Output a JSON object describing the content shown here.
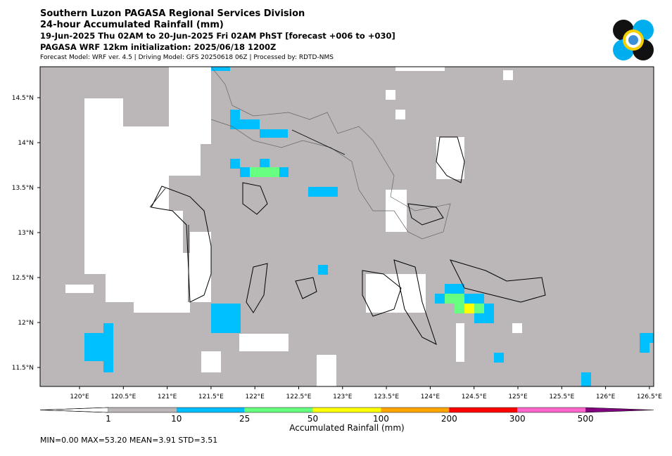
{
  "header": {
    "lines": [
      "Southern Luzon PAGASA Regional Services Division",
      "24-hour Accumulated Rainfall (mm)",
      "19-Jun-2025 Thu 02AM to 20-Jun-2025 Fri 02AM PhST [forecast +006 to +030]",
      "PAGASA WRF 12km initialization: 2025/06/18 1200Z",
      "Forecast Model: WRF ver. 4.5 | Driving Model: GFS 20250618 06Z | Processed by: RDTD-NMS"
    ]
  },
  "map": {
    "xticks": [
      {
        "value": 120,
        "label": "120°E"
      },
      {
        "value": 120.5,
        "label": "120.5°E"
      },
      {
        "value": 121,
        "label": "121°E"
      },
      {
        "value": 121.5,
        "label": "121.5°E"
      },
      {
        "value": 122,
        "label": "122°E"
      },
      {
        "value": 122.5,
        "label": "122.5°E"
      },
      {
        "value": 123,
        "label": "123°E"
      },
      {
        "value": 123.5,
        "label": "123.5°E"
      },
      {
        "value": 124,
        "label": "124°E"
      },
      {
        "value": 124.5,
        "label": "124.5°E"
      },
      {
        "value": 125,
        "label": "125°E"
      },
      {
        "value": 125.5,
        "label": "125.5°E"
      },
      {
        "value": 126,
        "label": "126°E"
      },
      {
        "value": 126.5,
        "label": "126.5°E"
      }
    ],
    "yticks": [
      {
        "value": 14.5,
        "label": "14.5°N"
      },
      {
        "value": 14,
        "label": "14°N"
      },
      {
        "value": 13.5,
        "label": "13.5°N"
      },
      {
        "value": 13,
        "label": "13°N"
      },
      {
        "value": 12.5,
        "label": "12.5°N"
      },
      {
        "value": 12,
        "label": "12°N"
      },
      {
        "value": 11.5,
        "label": "11.5°N"
      }
    ]
  },
  "colorbar": {
    "title": "Accumulated Rainfall (mm)",
    "labels": [
      1,
      10,
      25,
      50,
      100,
      200,
      300,
      500
    ],
    "colors": [
      "#bbb7b8",
      "#00bfff",
      "#66ff80",
      "#ffff00",
      "#ffa500",
      "#ff0000",
      "#ff66cc",
      "#800080"
    ]
  },
  "footer": {
    "stats": "MIN=0.00   MAX=53.20   MEAN=3.91   STD=3.51"
  }
}
